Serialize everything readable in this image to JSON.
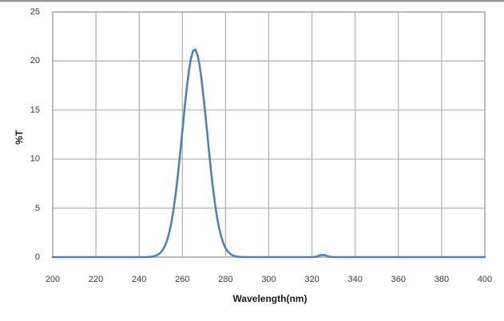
{
  "chart_data": {
    "type": "line",
    "title": "",
    "xlabel": "Wavelength(nm)",
    "ylabel": "%T",
    "xlim": [
      200,
      400
    ],
    "ylim": [
      0,
      25
    ],
    "x_ticks": [
      200,
      220,
      240,
      260,
      280,
      300,
      320,
      340,
      360,
      380,
      400
    ],
    "y_ticks": [
      0,
      5,
      10,
      15,
      20,
      25
    ],
    "grid": true,
    "legend_position": "none",
    "colors": {
      "line": "#4f81bd",
      "grid": "#b0b0b0",
      "plot_border": "#a6a6a6",
      "tick_text": "#3b3b3b",
      "axis_title_text": "#1a1a1a",
      "background": "#ffffff",
      "window_top_border": "#969696"
    },
    "series": [
      {
        "name": "%T",
        "points": [
          [
            200,
            0
          ],
          [
            210,
            0
          ],
          [
            220,
            0
          ],
          [
            230,
            0
          ],
          [
            240,
            0
          ],
          [
            244,
            0.01
          ],
          [
            245,
            0.03
          ],
          [
            246,
            0.05
          ],
          [
            247,
            0.1
          ],
          [
            248,
            0.17
          ],
          [
            249,
            0.29
          ],
          [
            250,
            0.48
          ],
          [
            251,
            0.76
          ],
          [
            252,
            1.18
          ],
          [
            253,
            1.77
          ],
          [
            254,
            2.58
          ],
          [
            255,
            3.64
          ],
          [
            256,
            4.98
          ],
          [
            257,
            6.61
          ],
          [
            258,
            8.51
          ],
          [
            259,
            10.63
          ],
          [
            260,
            12.86
          ],
          [
            261,
            15.09
          ],
          [
            262,
            17.17
          ],
          [
            263,
            18.95
          ],
          [
            264,
            20.28
          ],
          [
            265,
            21.04
          ],
          [
            266,
            21.17
          ],
          [
            267,
            20.66
          ],
          [
            268,
            19.54
          ],
          [
            269,
            17.93
          ],
          [
            270,
            15.95
          ],
          [
            271,
            13.76
          ],
          [
            272,
            11.51
          ],
          [
            273,
            9.34
          ],
          [
            274,
            7.34
          ],
          [
            275,
            5.6
          ],
          [
            276,
            4.14
          ],
          [
            277,
            2.97
          ],
          [
            278,
            2.07
          ],
          [
            279,
            1.39
          ],
          [
            280,
            0.91
          ],
          [
            281,
            0.58
          ],
          [
            282,
            0.36
          ],
          [
            283,
            0.21
          ],
          [
            284,
            0.12
          ],
          [
            285,
            0.07
          ],
          [
            286,
            0.04
          ],
          [
            287,
            0.02
          ],
          [
            288,
            0.01
          ],
          [
            290,
            0
          ],
          [
            300,
            0
          ],
          [
            310,
            0
          ],
          [
            320,
            0
          ],
          [
            322,
            0.05
          ],
          [
            323,
            0.12
          ],
          [
            324,
            0.2
          ],
          [
            325,
            0.22
          ],
          [
            326,
            0.2
          ],
          [
            327,
            0.12
          ],
          [
            328,
            0.05
          ],
          [
            330,
            0
          ],
          [
            340,
            0
          ],
          [
            350,
            0
          ],
          [
            360,
            0
          ],
          [
            370,
            0
          ],
          [
            380,
            0
          ],
          [
            390,
            0
          ],
          [
            400,
            0
          ]
        ]
      }
    ]
  }
}
